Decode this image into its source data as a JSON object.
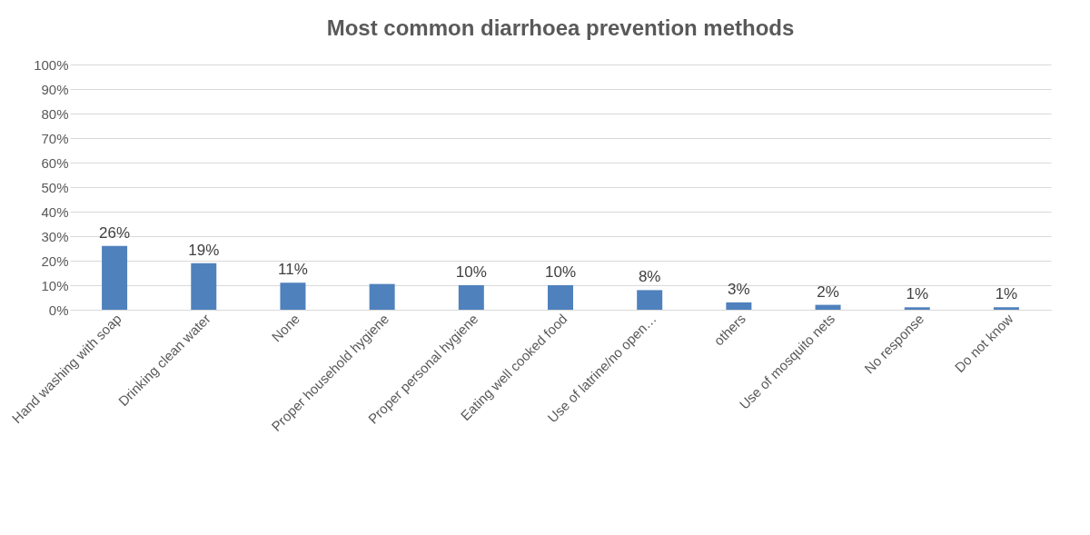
{
  "chart_data": {
    "type": "bar",
    "title": "Most common diarrhoea prevention methods",
    "categories": [
      "Hand washing with soap",
      "Drinking clean water",
      "None",
      "Proper household hygiene",
      "Proper personal hygiene",
      "Eating well cooked food",
      "Use of latrine/no open…",
      "others",
      "Use of mosquito nets",
      "No response",
      "Do not know"
    ],
    "values": [
      26,
      19,
      11,
      10.5,
      10,
      10,
      8,
      3,
      2,
      1,
      1
    ],
    "value_labels": [
      "26%",
      "19%",
      "11%",
      null,
      "10%",
      "10%",
      "8%",
      "3%",
      "2%",
      "1%",
      "1%"
    ],
    "color": "#4f81bd",
    "ylim": [
      0,
      100
    ],
    "yticks": [
      {
        "value": 0,
        "label": "0%"
      },
      {
        "value": 10,
        "label": "10%"
      },
      {
        "value": 20,
        "label": "20%"
      },
      {
        "value": 30,
        "label": "30%"
      },
      {
        "value": 40,
        "label": "40%"
      },
      {
        "value": 50,
        "label": "50%"
      },
      {
        "value": 60,
        "label": "60%"
      },
      {
        "value": 70,
        "label": "70%"
      },
      {
        "value": 80,
        "label": "80%"
      },
      {
        "value": 90,
        "label": "90%"
      },
      {
        "value": 100,
        "label": "100%"
      }
    ],
    "grid": "y"
  }
}
